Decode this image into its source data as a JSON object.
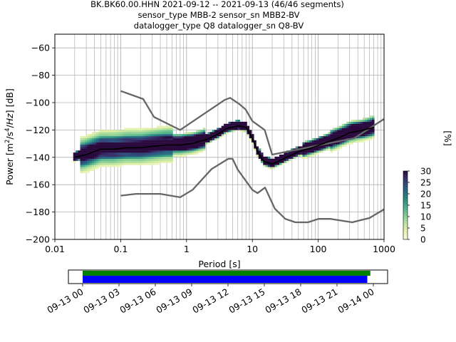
{
  "header": {
    "line1": "BK.BK60.00.HHN   2021-09-12 -- 2021-09-13  (46/46 segments)",
    "line2": "sensor_type MBB-2 sensor_sn MBB2-BV",
    "line3": "datalogger_type Q8 datalogger_sn Q8-BV"
  },
  "colorbar": {
    "label": "[%]",
    "ticks": [
      "0",
      "5",
      "10",
      "15",
      "20",
      "25",
      "30"
    ],
    "range": [
      0,
      30
    ]
  },
  "chart_data": [
    {
      "type": "heatmap",
      "xlabel": "Period [s]",
      "ylabel": "Power [m^2/s^4/Hz] [dB]",
      "xscale": "log",
      "xlim": [
        0.01,
        1000
      ],
      "ylim": [
        -200,
        -50
      ],
      "x_ticks": [
        "0.01",
        "0.1",
        "1",
        "10",
        "100",
        "1000"
      ],
      "y_ticks": [
        "−60",
        "−80",
        "−100",
        "−120",
        "−140",
        "−160",
        "−180",
        "−200"
      ],
      "grid": true,
      "series": [
        {
          "name": "",
          "role": "mean",
          "color": "#000000",
          "x": [
            0.02,
            0.03,
            0.05,
            0.08,
            0.12,
            0.2,
            0.3,
            0.5,
            0.8,
            1.2,
            2,
            3,
            4,
            5,
            6,
            8,
            10,
            12,
            15,
            20,
            30,
            50,
            80,
            120,
            200,
            300,
            500,
            700
          ],
          "y": [
            -140,
            -138,
            -134,
            -134,
            -133,
            -133,
            -132,
            -131,
            -131,
            -130,
            -127,
            -123,
            -119,
            -118,
            -117,
            -118,
            -126,
            -136,
            -143,
            -145,
            -141,
            -136,
            -133,
            -130,
            -126,
            -122,
            -120,
            -118
          ]
        },
        {
          "name": "",
          "role": "high noise model",
          "color": "#666666",
          "x": [
            0.1,
            0.22,
            0.32,
            0.8,
            3.8,
            4.6,
            6.3,
            7.9,
            10,
            15.4,
            20,
            354.8,
            1000
          ],
          "y": [
            -91.5,
            -97.4,
            -110.5,
            -120,
            -98,
            -96.5,
            -101,
            -105,
            -113.5,
            -120,
            -138,
            -126,
            -112
          ]
        },
        {
          "name": "",
          "role": "low noise model",
          "color": "#666666",
          "x": [
            0.1,
            0.17,
            0.4,
            0.8,
            1.24,
            2.4,
            4.3,
            5,
            6,
            10,
            12,
            15.6,
            21.9,
            31.6,
            45,
            70,
            101,
            154,
            328,
            600,
            1000
          ],
          "y": [
            -168,
            -166.7,
            -166.7,
            -169.2,
            -163.7,
            -148.6,
            -141.1,
            -141.1,
            -149,
            -163.8,
            -166.2,
            -162.1,
            -177.5,
            -185,
            -187.5,
            -187.5,
            -185,
            -185,
            -187.5,
            -184.4,
            -178
          ]
        }
      ]
    },
    {
      "type": "bar",
      "orientation": "horizontal",
      "x_ticks": [
        "09-13 00",
        "09-13 03",
        "09-13 06",
        "09-13 09",
        "09-13 12",
        "09-13 15",
        "09-13 18",
        "09-13 21",
        "09-14 00"
      ],
      "series": [
        {
          "name": "",
          "color": "#008000",
          "start": "09-13 00",
          "end": "09-13 23:45"
        },
        {
          "name": "",
          "color": "#0000ff",
          "start": "09-13 00",
          "end": "09-13 23:30"
        }
      ]
    }
  ]
}
